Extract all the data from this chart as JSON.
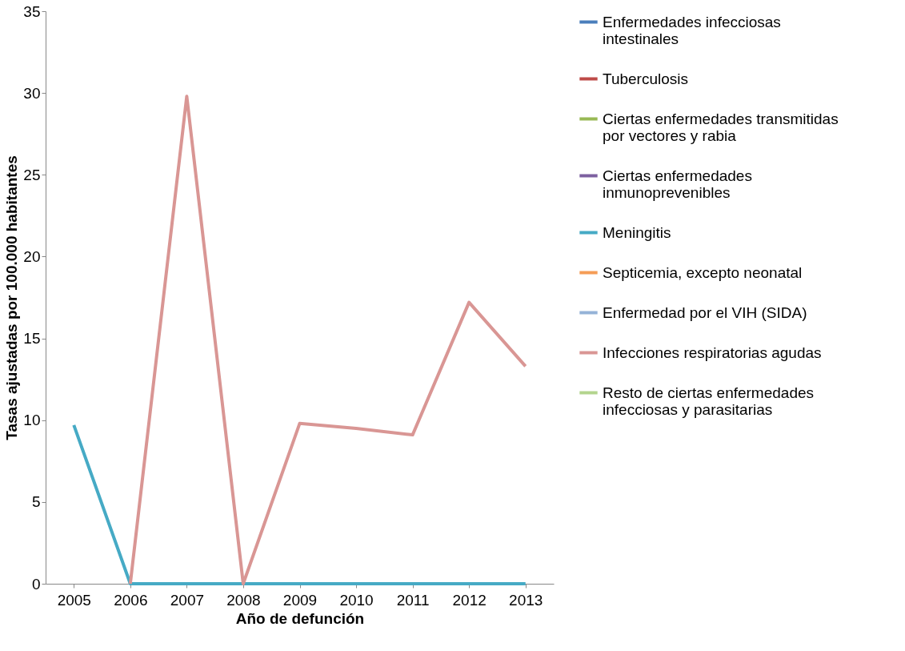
{
  "chart_data": {
    "type": "line",
    "xlabel": "Año de defunción",
    "ylabel": "Tasas ajustadas por 100.000 habitantes",
    "categories": [
      "2005",
      "2006",
      "2007",
      "2008",
      "2009",
      "2010",
      "2011",
      "2012",
      "2013"
    ],
    "ylim": [
      0,
      35
    ],
    "yticks": [
      0,
      5,
      10,
      15,
      20,
      25,
      30,
      35
    ],
    "grid": false,
    "legend": "right",
    "marker": "none",
    "line_style": "solid",
    "series": [
      {
        "name": "Enfermedades infecciosas intestinales",
        "color": "#4a7ebb",
        "values": [
          null,
          null,
          null,
          null,
          null,
          null,
          null,
          null,
          null
        ]
      },
      {
        "name": "Tuberculosis",
        "color": "#be4b48",
        "values": [
          null,
          null,
          null,
          null,
          null,
          null,
          null,
          null,
          null
        ]
      },
      {
        "name": "Ciertas enfermedades transmitidas por vectores y rabia",
        "color": "#98b954",
        "values": [
          null,
          null,
          null,
          null,
          null,
          null,
          null,
          null,
          null
        ]
      },
      {
        "name": "Ciertas enfermedades inmunoprevenibles",
        "color": "#7d60a0",
        "values": [
          null,
          null,
          null,
          null,
          null,
          null,
          null,
          null,
          null
        ]
      },
      {
        "name": "Meningitis",
        "color": "#46aac5",
        "values": [
          9.7,
          0,
          0,
          0,
          0,
          0,
          0,
          0,
          0
        ]
      },
      {
        "name": "Septicemia, excepto neonatal",
        "color": "#f59d56",
        "values": [
          null,
          null,
          null,
          null,
          null,
          null,
          null,
          null,
          null
        ]
      },
      {
        "name": "Enfermedad por el VIH (SIDA)",
        "color": "#95b3d7",
        "values": [
          null,
          null,
          null,
          null,
          null,
          null,
          null,
          null,
          null
        ]
      },
      {
        "name": "Infecciones respiratorias agudas",
        "color": "#d99694",
        "values": [
          null,
          0,
          29.8,
          0,
          9.8,
          9.5,
          9.1,
          17.2,
          13.3
        ]
      },
      {
        "name": "Resto de ciertas enfermedades infecciosas y parasitarias",
        "color": "#b3d48e",
        "values": [
          null,
          null,
          null,
          null,
          null,
          null,
          null,
          null,
          null
        ]
      }
    ]
  }
}
